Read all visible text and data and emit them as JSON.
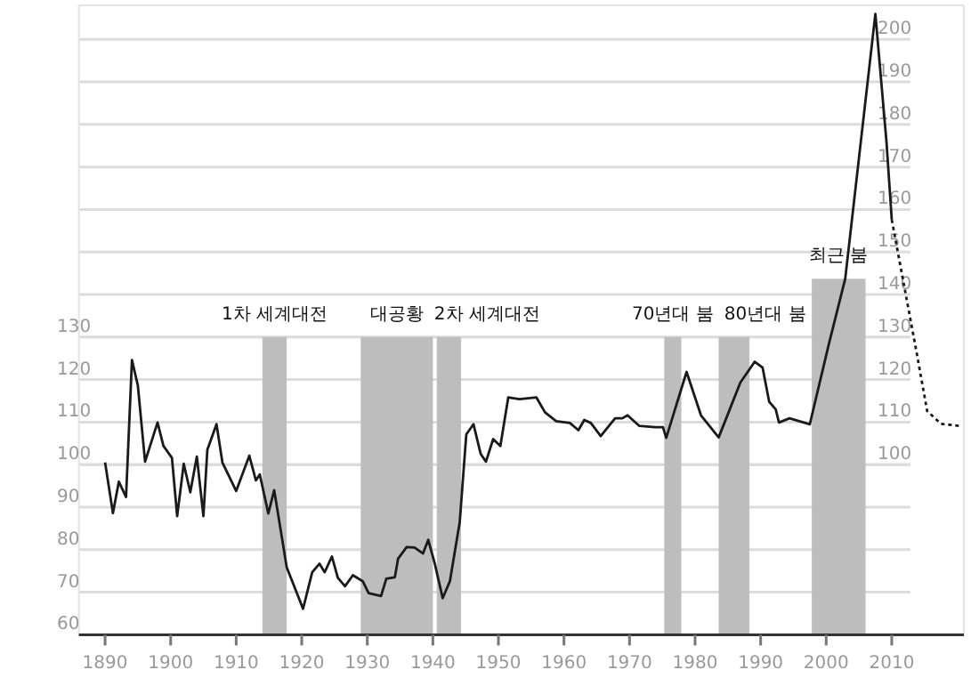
{
  "chart_data": {
    "type": "line",
    "xlim": [
      1886,
      2021
    ],
    "ylim": [
      60,
      208
    ],
    "y2lim": [
      60,
      208
    ],
    "xticks": [
      1890,
      1900,
      1910,
      1920,
      1930,
      1940,
      1950,
      1960,
      1970,
      1980,
      1990,
      2000,
      2010
    ],
    "yticks": [
      60,
      70,
      80,
      90,
      100,
      110,
      120,
      130
    ],
    "y2ticks": [
      100,
      110,
      120,
      130,
      140,
      150,
      160,
      170,
      180,
      190,
      200
    ],
    "grid": "y",
    "marker": "none",
    "series": [
      {
        "color": "#1a1a1a",
        "line_style": "solid",
        "x": [
          1890,
          1891.2,
          1892.1,
          1893.2,
          1894.1,
          1895,
          1896.1,
          1898,
          1898.9,
          1900.2,
          1901,
          1902,
          1903,
          1904,
          1905,
          1905.6,
          1907,
          1907.9,
          1910,
          1912,
          1913,
          1913.6,
          1914.9,
          1915.8,
          1917.7,
          1920.2,
          1921.6,
          1922.7,
          1923.5,
          1924.6,
          1925.5,
          1926.6,
          1927.8,
          1929.3,
          1930.2,
          1932.1,
          1932.9,
          1934.2,
          1934.7,
          1936,
          1937.2,
          1938.5,
          1939.3,
          1940.3,
          1941.5,
          1942.6,
          1944.1,
          1945.1,
          1946.2,
          1947.3,
          1948.1,
          1949.2,
          1950.3,
          1951.5,
          1953.2,
          1955.8,
          1957.1,
          1958.8,
          1960.9,
          1962.2,
          1963.1,
          1964.1,
          1965.6,
          1967.8,
          1968.9,
          1969.7,
          1971.5,
          1973.9,
          1975.1,
          1975.6,
          1978.7,
          1980.9,
          1983.6,
          1986.9,
          1989.1,
          1990.3,
          1991.3,
          1992.3,
          1992.8,
          1994.4,
          1997.5,
          2000.4,
          2002.9,
          2007.5,
          2009.2,
          2010
        ],
        "values": [
          100.5,
          88.6,
          96,
          92.4,
          124.6,
          118.6,
          100.7,
          109.9,
          104.4,
          101.6,
          87.9,
          100.2,
          93.5,
          101.9,
          87.9,
          103.5,
          109.5,
          100.5,
          93.8,
          102.1,
          96.3,
          97.7,
          88.5,
          94,
          75.9,
          66.1,
          74.7,
          76.7,
          74.7,
          78.4,
          73.4,
          71.4,
          74,
          72.6,
          69.8,
          69.1,
          73.2,
          73.5,
          77.9,
          80.6,
          80.5,
          79.1,
          82.3,
          76.7,
          68.6,
          72.6,
          86.5,
          107.1,
          109.5,
          102.5,
          100.7,
          106,
          104.4,
          115.8,
          115.4,
          115.8,
          112.3,
          110.2,
          109.8,
          108.1,
          110.5,
          109.8,
          106.7,
          110.9,
          110.9,
          111.6,
          109.1,
          108.8,
          108.8,
          106.3,
          121.8,
          111.6,
          106.4,
          119.3,
          124.2,
          122.8,
          114.8,
          113,
          109.9,
          110.9,
          109.5,
          128.3,
          143.7,
          206,
          175.8,
          157.6
        ]
      },
      {
        "color": "#1a1a1a",
        "line_style": "dotted",
        "x": [
          2010,
          2013.8,
          2015.4,
          2017.5,
          2020.4
        ],
        "values": [
          157.6,
          126.3,
          112.6,
          109.6,
          109.1
        ]
      }
    ],
    "bands": [
      {
        "axis": "x",
        "from": 1914,
        "to": 1917.7,
        "label": "1차 세계대전",
        "color": "#bdbdbd"
      },
      {
        "axis": "x",
        "from": 1929,
        "to": 1940,
        "label": "대공황",
        "color": "#bdbdbd"
      },
      {
        "axis": "x",
        "from": 1940.6,
        "to": 1944.3,
        "label": "2차 세계대전",
        "color": "#bdbdbd"
      },
      {
        "axis": "x",
        "from": 1975.3,
        "to": 1977.9,
        "label": "70년대 붐",
        "color": "#bdbdbd"
      },
      {
        "axis": "x",
        "from": 1983.6,
        "to": 1988.3,
        "label": "80년대 붐",
        "color": "#bdbdbd"
      },
      {
        "axis": "x",
        "from": 1997.8,
        "to": 2006,
        "label": "최근 붐",
        "color": "#bdbdbd"
      }
    ]
  }
}
